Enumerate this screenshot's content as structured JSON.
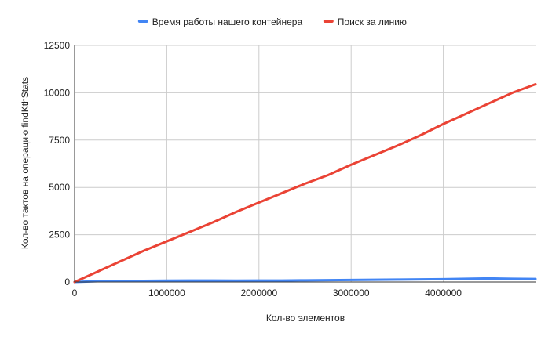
{
  "chart_data": {
    "type": "line",
    "title": "",
    "xlabel": "Кол-во элементов",
    "ylabel": "Кол-во тактов на операцию findKthStats",
    "xlim": [
      0,
      5000000
    ],
    "ylim": [
      0,
      12500
    ],
    "x_ticks": [
      0,
      1000000,
      2000000,
      3000000,
      4000000
    ],
    "x_tick_labels": [
      "0",
      "1000000",
      "2000000",
      "3000000",
      "4000000"
    ],
    "y_ticks": [
      0,
      2500,
      5000,
      7500,
      10000,
      12500
    ],
    "y_tick_labels": [
      "0",
      "2500",
      "5000",
      "7500",
      "10000",
      "12500"
    ],
    "grid": true,
    "legend_position": "top",
    "x": [
      0,
      250000,
      500000,
      750000,
      1000000,
      1250000,
      1500000,
      1750000,
      2000000,
      2250000,
      2500000,
      2750000,
      3000000,
      3250000,
      3500000,
      3750000,
      4000000,
      4250000,
      4500000,
      4750000,
      5000000
    ],
    "series": [
      {
        "name": "Время работы нашего контейнера",
        "color": "#4285f4",
        "values": [
          0,
          40,
          60,
          60,
          70,
          80,
          80,
          70,
          80,
          80,
          90,
          100,
          110,
          120,
          130,
          140,
          150,
          170,
          190,
          170,
          160
        ]
      },
      {
        "name": "Поиск за линию",
        "color": "#ea4335",
        "values": [
          0,
          550,
          1100,
          1650,
          2150,
          2650,
          3150,
          3700,
          4200,
          4700,
          5200,
          5650,
          6200,
          6700,
          7200,
          7750,
          8350,
          8900,
          9450,
          10000,
          10450
        ]
      }
    ]
  }
}
